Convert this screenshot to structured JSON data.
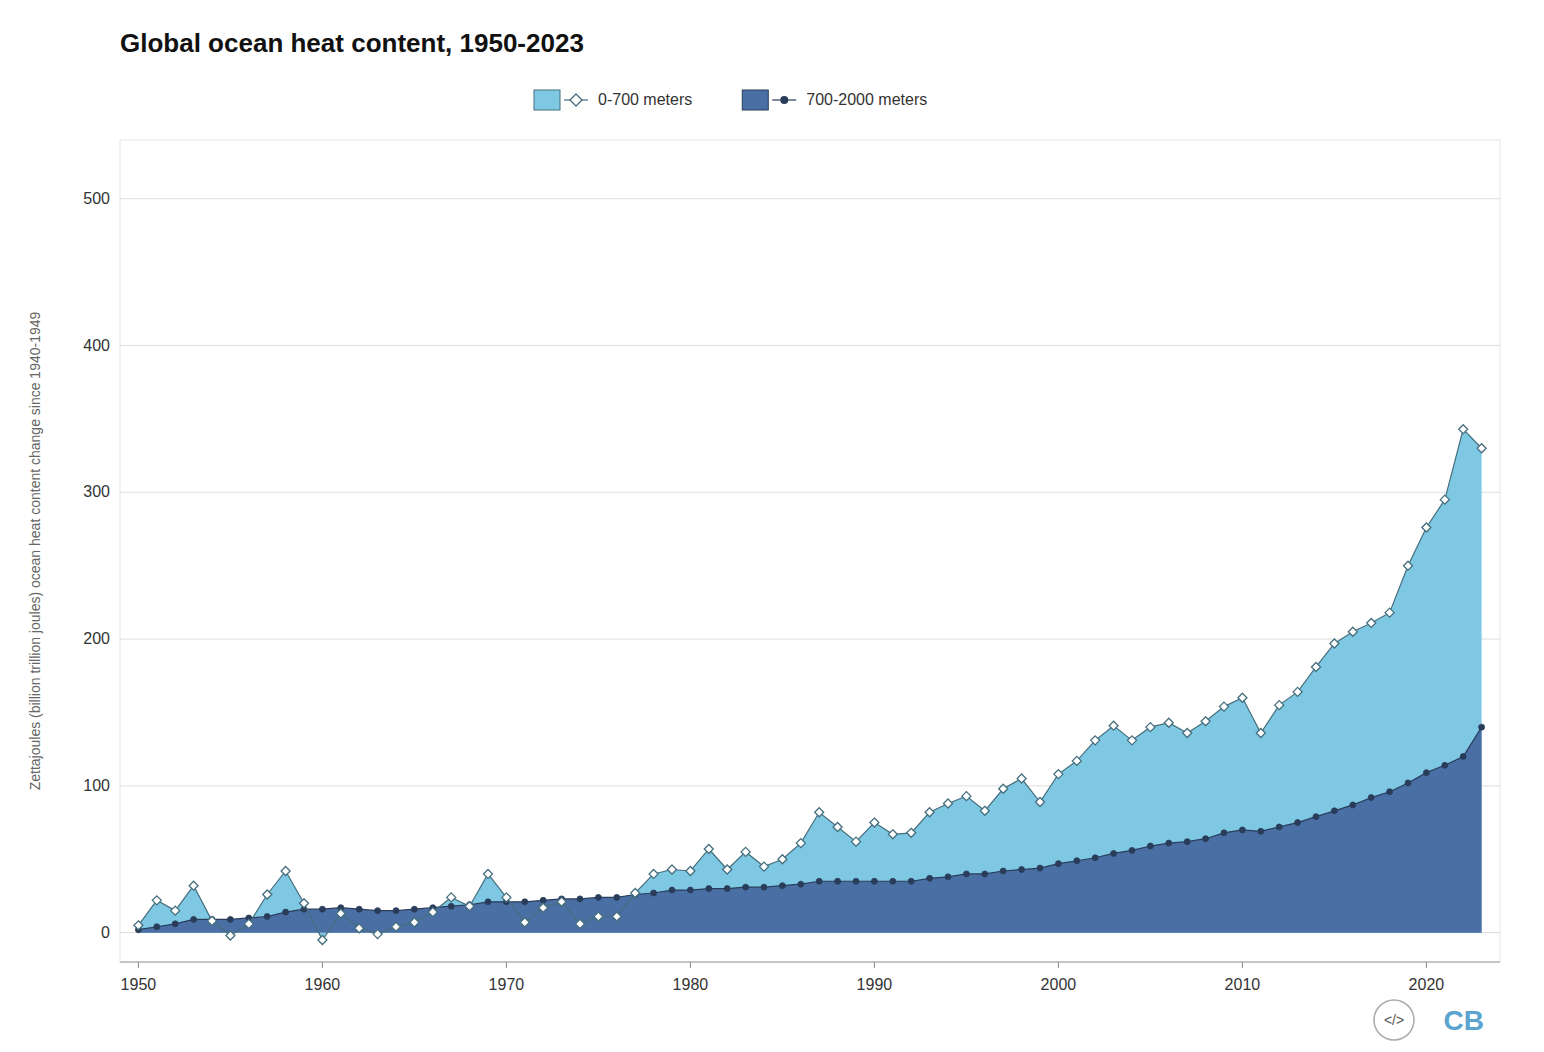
{
  "chart_data": {
    "type": "area",
    "title": "Global ocean heat content, 1950-2023",
    "y_label": "Zettajoules (billion trillion joules) ocean heat content change since 1940-1949",
    "x": [
      1950,
      1951,
      1952,
      1953,
      1954,
      1955,
      1956,
      1957,
      1958,
      1959,
      1960,
      1961,
      1962,
      1963,
      1964,
      1965,
      1966,
      1967,
      1968,
      1969,
      1970,
      1971,
      1972,
      1973,
      1974,
      1975,
      1976,
      1977,
      1978,
      1979,
      1980,
      1981,
      1982,
      1983,
      1984,
      1985,
      1986,
      1987,
      1988,
      1989,
      1990,
      1991,
      1992,
      1993,
      1994,
      1995,
      1996,
      1997,
      1998,
      1999,
      2000,
      2001,
      2002,
      2003,
      2004,
      2005,
      2006,
      2007,
      2008,
      2009,
      2010,
      2011,
      2012,
      2013,
      2014,
      2015,
      2016,
      2017,
      2018,
      2019,
      2020,
      2021,
      2022,
      2023
    ],
    "series": [
      {
        "name": "0-700 meters",
        "color": "#7ec8e3",
        "marker": "diamond",
        "values": [
          5,
          22,
          15,
          32,
          8,
          -2,
          6,
          26,
          42,
          20,
          -5,
          13,
          3,
          -1,
          4,
          7,
          14,
          24,
          18,
          40,
          24,
          7,
          17,
          21,
          6,
          11,
          11,
          27,
          40,
          43,
          42,
          57,
          43,
          55,
          45,
          50,
          61,
          82,
          72,
          62,
          75,
          67,
          68,
          82,
          88,
          93,
          83,
          98,
          105,
          89,
          108,
          117,
          131,
          141,
          131,
          140,
          143,
          136,
          144,
          154,
          160,
          136,
          155,
          164,
          181,
          197,
          205,
          211,
          218,
          250,
          276,
          295,
          343,
          330
        ]
      },
      {
        "name": "700-2000 meters",
        "color": "#4a6fa5",
        "marker": "circle",
        "values": [
          2,
          4,
          6,
          9,
          9,
          9,
          10,
          11,
          14,
          16,
          16,
          17,
          16,
          15,
          15,
          16,
          17,
          18,
          19,
          21,
          21,
          21,
          22,
          23,
          23,
          24,
          24,
          26,
          27,
          29,
          29,
          30,
          30,
          31,
          31,
          32,
          33,
          35,
          35,
          35,
          35,
          35,
          35,
          37,
          38,
          40,
          40,
          42,
          43,
          44,
          47,
          49,
          51,
          54,
          56,
          59,
          61,
          62,
          64,
          68,
          70,
          69,
          72,
          75,
          79,
          83,
          87,
          92,
          96,
          102,
          109,
          114,
          120,
          140
        ]
      }
    ],
    "stacked": false,
    "xlim": [
      1949,
      2024
    ],
    "xticks": [
      1950,
      1960,
      1970,
      1980,
      1990,
      2000,
      2010,
      2020
    ],
    "ylim": [
      -20,
      540
    ],
    "yticks": [
      0,
      100,
      200,
      300,
      400,
      500
    ],
    "grid": true,
    "legend": "top",
    "annotations": [
      "CB",
      "</>"
    ]
  }
}
